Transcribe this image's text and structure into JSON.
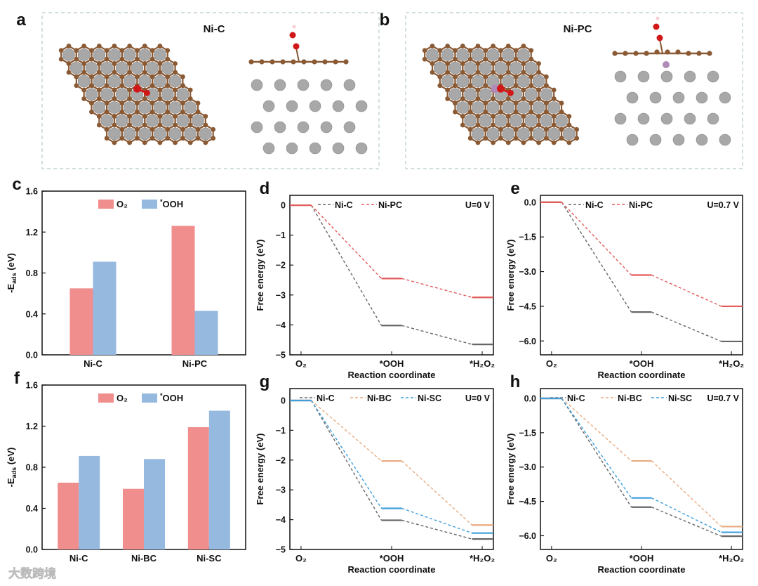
{
  "panels": {
    "a": {
      "letter": "a",
      "title": "Ni-C"
    },
    "b": {
      "letter": "b",
      "title": "Ni-PC"
    }
  },
  "colors": {
    "O2_bar": "#f08e8e",
    "OOH_bar": "#96b9e0",
    "Ni-C": "#666666",
    "Ni-PC": "#e35a5a",
    "Ni-BC": "#e8ab80",
    "Ni-SC": "#3f9fdb",
    "carbon": "#8a5a35",
    "nickel": "#a8a8a8",
    "oxygen": "#d01818",
    "phosphorus": "#b08ab8",
    "frame": "#b8cccc"
  },
  "watermark": "大数跨境",
  "chart_data": [
    {
      "id": "c",
      "letter": "c",
      "type": "bar",
      "categories": [
        "Ni-C",
        "Ni-PC"
      ],
      "series": [
        {
          "name": "O₂",
          "key": "O2_bar",
          "values": [
            0.65,
            1.26
          ]
        },
        {
          "name": "*OOH",
          "key": "OOH_bar",
          "values": [
            0.91,
            0.43
          ]
        }
      ],
      "ylabel_main": "-E",
      "ylabel_sub": "ads",
      "ylabel_unit": " (eV)",
      "ylim": [
        0,
        1.6
      ],
      "yticks": [
        "0.0",
        "0.4",
        "0.8",
        "1.2",
        "1.6"
      ],
      "legend": "top-center"
    },
    {
      "id": "d",
      "letter": "d",
      "type": "line",
      "categories": [
        "O₂",
        "*OOH",
        "*H₂O₂"
      ],
      "series": [
        {
          "name": "Ni-C",
          "values": [
            0,
            -4.02,
            -4.65
          ]
        },
        {
          "name": "Ni-PC",
          "values": [
            0,
            -2.45,
            -3.08
          ]
        }
      ],
      "annotation": "U=0 V",
      "xlabel": "Reaction coordinate",
      "ylabel": "Free energy (eV)",
      "ylim": [
        -5,
        0.33
      ],
      "yticks": [
        "0",
        "-1",
        "-2",
        "-3",
        "-4",
        "-5"
      ],
      "legend": "top"
    },
    {
      "id": "e",
      "letter": "e",
      "type": "line",
      "categories": [
        "O₂",
        "*OOH",
        "*H₂O₂"
      ],
      "series": [
        {
          "name": "Ni-C",
          "values": [
            0,
            -4.75,
            -6.02
          ]
        },
        {
          "name": "Ni-PC",
          "values": [
            0,
            -3.15,
            -4.5
          ]
        }
      ],
      "annotation": "U=0.7 V",
      "xlabel": "Reaction coordinate",
      "ylabel": "Free energy (eV)",
      "ylim": [
        -6.6,
        0.3
      ],
      "yticks": [
        "0.0",
        "-1.5",
        "-3.0",
        "-4.5",
        "-6.0"
      ],
      "legend": "top"
    },
    {
      "id": "f",
      "letter": "f",
      "type": "bar",
      "categories": [
        "Ni-C",
        "Ni-BC",
        "Ni-SC"
      ],
      "series": [
        {
          "name": "O₂",
          "key": "O2_bar",
          "values": [
            0.65,
            0.59,
            1.19
          ]
        },
        {
          "name": "*OOH",
          "key": "OOH_bar",
          "values": [
            0.91,
            0.88,
            1.35
          ]
        }
      ],
      "ylabel_main": "-E",
      "ylabel_sub": "ads",
      "ylabel_unit": " (eV)",
      "ylim": [
        0,
        1.6
      ],
      "yticks": [
        "0.0",
        "0.4",
        "0.8",
        "1.2",
        "1.6"
      ],
      "legend": "top-center"
    },
    {
      "id": "g",
      "letter": "g",
      "type": "line",
      "categories": [
        "O₂",
        "*OOH",
        "*H₂O₂"
      ],
      "series": [
        {
          "name": "Ni-C",
          "values": [
            0,
            -4.02,
            -4.65
          ]
        },
        {
          "name": "Ni-BC",
          "values": [
            0,
            -2.03,
            -4.18
          ]
        },
        {
          "name": "Ni-SC",
          "values": [
            0,
            -3.62,
            -4.45
          ]
        }
      ],
      "annotation": "U=0 V",
      "xlabel": "Reaction coordinate",
      "ylabel": "Free energy (eV)",
      "ylim": [
        -5,
        0.4
      ],
      "yticks": [
        "0",
        "-1",
        "-2",
        "-3",
        "-4",
        "-5"
      ],
      "legend": "top"
    },
    {
      "id": "h",
      "letter": "h",
      "type": "line",
      "categories": [
        "O₂",
        "*OOH",
        "*H₂O₂"
      ],
      "series": [
        {
          "name": "Ni-C",
          "values": [
            0,
            -4.75,
            -6.02
          ]
        },
        {
          "name": "Ni-BC",
          "values": [
            0,
            -2.73,
            -5.6
          ]
        },
        {
          "name": "Ni-SC",
          "values": [
            0,
            -4.35,
            -5.85
          ]
        }
      ],
      "annotation": "U=0.7 V",
      "xlabel": "Reaction coordinate",
      "ylabel": "Free energy (eV)",
      "ylim": [
        -6.6,
        0.43
      ],
      "yticks": [
        "0.0",
        "-1.5",
        "-3.0",
        "-4.5",
        "-6.0"
      ],
      "legend": "top"
    }
  ]
}
